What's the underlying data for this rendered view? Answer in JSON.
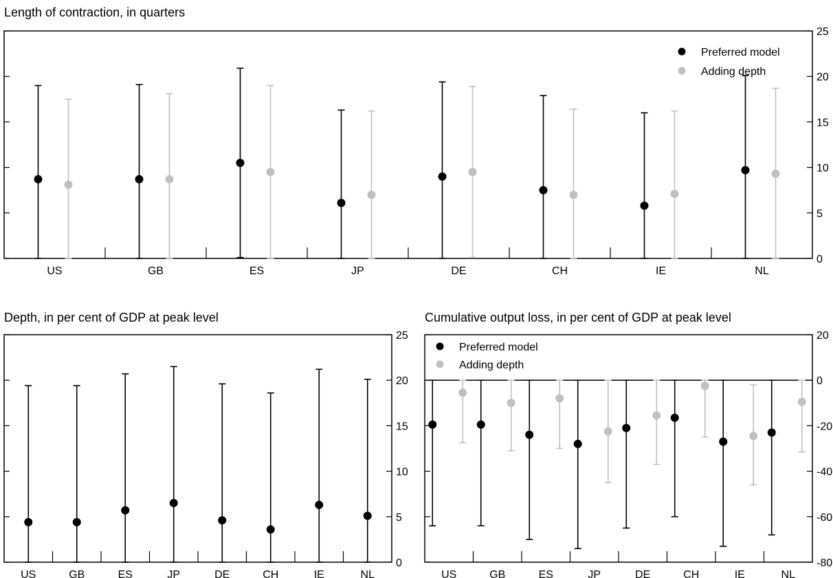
{
  "colors": {
    "preferred": "#000000",
    "adding_depth": "#c0c0c0",
    "axis": "#000000",
    "background": "#ffffff"
  },
  "chart_data": [
    {
      "id": "length",
      "type": "scatter",
      "title": "Length of contraction, in quarters",
      "categories": [
        "US",
        "GB",
        "ES",
        "JP",
        "DE",
        "CH",
        "IE",
        "NL"
      ],
      "ylim": [
        0,
        25
      ],
      "yticks": [
        0,
        5,
        10,
        15,
        20,
        25
      ],
      "grid": false,
      "legend": "top-right",
      "series": [
        {
          "name": "Preferred model",
          "color": "#000000",
          "values": [
            8.7,
            8.7,
            10.5,
            6.1,
            9.0,
            7.5,
            5.8,
            9.7
          ],
          "lower": [
            0,
            0,
            0.1,
            0,
            0,
            0,
            0,
            0
          ],
          "upper": [
            19.0,
            19.1,
            20.9,
            16.3,
            19.4,
            17.9,
            16.0,
            20.1
          ]
        },
        {
          "name": "Adding depth",
          "color": "#c0c0c0",
          "values": [
            8.1,
            8.7,
            9.5,
            7.0,
            9.5,
            7.0,
            7.1,
            9.3
          ],
          "lower": [
            0,
            0,
            0,
            0,
            0.1,
            0,
            0,
            0
          ],
          "upper": [
            17.5,
            18.1,
            19.0,
            16.2,
            18.9,
            16.4,
            16.2,
            18.7
          ]
        }
      ]
    },
    {
      "id": "depth",
      "type": "scatter",
      "title": "Depth, in per cent of GDP at peak level",
      "categories": [
        "US",
        "GB",
        "ES",
        "JP",
        "DE",
        "CH",
        "IE",
        "NL"
      ],
      "ylim": [
        0,
        25
      ],
      "yticks": [
        0,
        5,
        10,
        15,
        20,
        25
      ],
      "grid": false,
      "series": [
        {
          "color": "#000000",
          "values": [
            4.4,
            4.4,
            5.7,
            6.5,
            4.6,
            3.6,
            6.3,
            5.1
          ],
          "lower": [
            0,
            0,
            0,
            0,
            0,
            0,
            0,
            0
          ],
          "upper": [
            19.4,
            19.4,
            20.7,
            21.5,
            19.6,
            18.6,
            21.2,
            20.1
          ]
        }
      ]
    },
    {
      "id": "cumulative",
      "type": "scatter",
      "title": "Cumulative output loss, in per cent of GDP at peak level",
      "categories": [
        "US",
        "GB",
        "ES",
        "JP",
        "DE",
        "CH",
        "IE",
        "NL"
      ],
      "ylim": [
        -80,
        20
      ],
      "yticks": [
        -80,
        -60,
        -40,
        -20,
        0,
        20
      ],
      "zero_line": true,
      "grid": false,
      "legend": "top-left",
      "series": [
        {
          "name": "Preferred model",
          "color": "#000000",
          "values": [
            -19.5,
            -19.5,
            -24,
            -28,
            -21,
            -16.5,
            -27,
            -23
          ],
          "lower": [
            -64,
            -64,
            -70,
            -74,
            -65,
            -60,
            -73,
            -68
          ],
          "upper": [
            0,
            0,
            0,
            0,
            0,
            0,
            0,
            0
          ]
        },
        {
          "name": "Adding depth",
          "color": "#c0c0c0",
          "values": [
            -5.5,
            -10,
            -8,
            -22.5,
            -15.5,
            -2.5,
            -24.5,
            -9.5
          ],
          "lower": [
            -27.5,
            -31,
            -30,
            -45,
            -37,
            -25,
            -46,
            -31.5
          ],
          "upper": [
            0,
            0,
            0,
            0,
            0,
            0,
            -2,
            0
          ]
        }
      ]
    }
  ]
}
